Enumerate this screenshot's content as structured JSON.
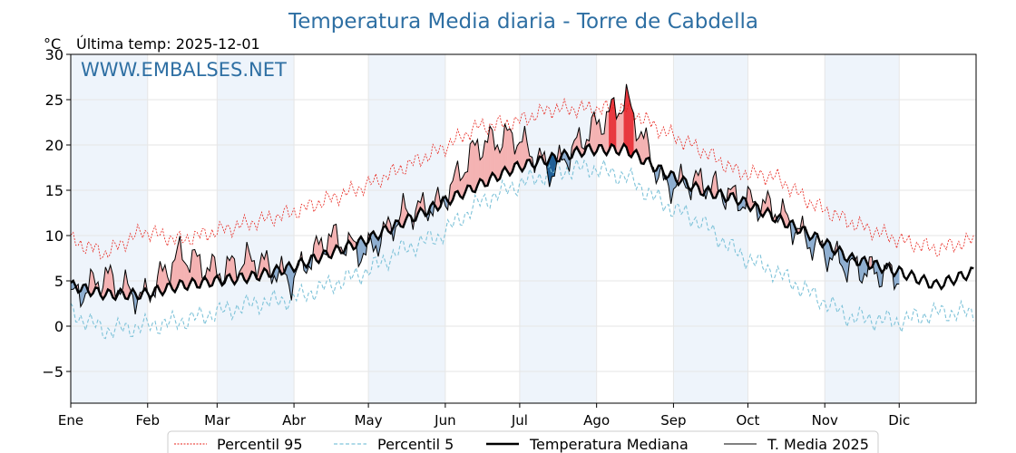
{
  "title": "Temperatura Media diaria - Torre de Cabdella",
  "subtitle": "Última temp: 2025-12-01",
  "unit_label": "°C",
  "watermark": "WWW.EMBALSES.NET",
  "colors": {
    "title": "#2e6fa3",
    "p95": "#e8231b",
    "p5": "#7fc3d9",
    "median": "#000000",
    "current": "#000000",
    "above_fill": "#f4b3b3",
    "above_strong": "#e8383f",
    "below_fill": "#8eaed0",
    "below_strong": "#1f5f96",
    "band": "#eef4fb"
  },
  "chart_data": {
    "type": "line",
    "title": "Temperatura Media diaria - Torre de Cabdella",
    "ylabel": "°C",
    "ylim": [
      -8.5,
      30
    ],
    "yticks": [
      -5,
      0,
      5,
      10,
      15,
      20,
      25,
      30
    ],
    "ytick_labels": [
      "−5",
      "0",
      "5",
      "10",
      "15",
      "20",
      "25",
      "30"
    ],
    "months": [
      "Ene",
      "Feb",
      "Mar",
      "Abr",
      "May",
      "Jun",
      "Jul",
      "Ago",
      "Sep",
      "Oct",
      "Nov",
      "Dic"
    ],
    "legend": [
      "Percentil 95",
      "Percentil 5",
      "Temperatura Mediana",
      "T. Media 2025"
    ],
    "legend_position": "bottom-center",
    "grid": true,
    "x_days": [
      1,
      15,
      30,
      45,
      60,
      75,
      90,
      105,
      120,
      135,
      150,
      165,
      180,
      195,
      210,
      225,
      240,
      255,
      270,
      285,
      300,
      315,
      335,
      350,
      365
    ],
    "series": [
      {
        "name": "Percentil 95",
        "values": [
          9.5,
          8,
          10.5,
          9.5,
          10.5,
          11.5,
          12.5,
          14,
          15.5,
          17.5,
          19.5,
          22,
          22.5,
          24,
          24,
          24,
          21.5,
          19.5,
          17,
          16.5,
          13.5,
          11.5,
          9.5,
          8.5,
          9.5
        ]
      },
      {
        "name": "Percentil 5",
        "values": [
          1.5,
          -0.5,
          0,
          0.5,
          1.5,
          2.5,
          3,
          4.5,
          6,
          8.5,
          10,
          13.5,
          15.5,
          17,
          17.5,
          16.5,
          13.5,
          11.5,
          8,
          6,
          3.5,
          1,
          0.5,
          1.5,
          1.5
        ]
      },
      {
        "name": "Temperatura Mediana",
        "values": [
          4.5,
          3.5,
          3.5,
          4.5,
          5,
          5.5,
          6.5,
          8,
          9.5,
          11.5,
          13.5,
          15.5,
          17.5,
          18.5,
          19.5,
          19.5,
          17,
          15,
          14,
          12,
          10,
          7.5,
          6,
          4.5,
          6
        ]
      },
      {
        "name": "T. Media 2025",
        "values": [
          3,
          5.5,
          3,
          8,
          6,
          7.5,
          5,
          10,
          8,
          12.5,
          13.5,
          20,
          21,
          17,
          21.5,
          25,
          15.5,
          16,
          14,
          13,
          9,
          6.5,
          5.5,
          null,
          null
        ]
      }
    ]
  }
}
